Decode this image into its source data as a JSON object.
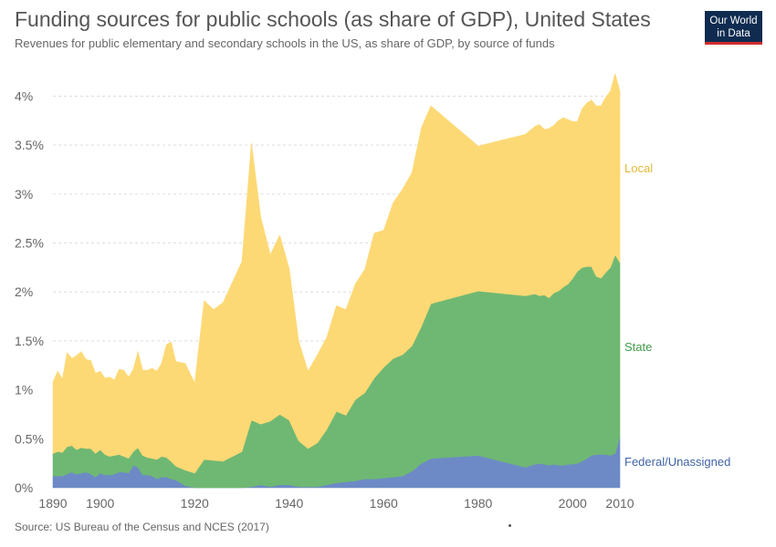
{
  "header": {
    "title": "Funding sources for public schools (as share of GDP), United States",
    "subtitle": "Revenues for public elementary and secondary schools in the US, as share of GDP, by source of funds"
  },
  "logo": {
    "line1": "Our World",
    "line2": "in Data"
  },
  "footer": {
    "source": "Source: US Bureau of the Census and NCES (2017)"
  },
  "chart_data": {
    "type": "area",
    "stacked": true,
    "title": "Funding sources for public schools (as share of GDP), United States",
    "xlabel": "",
    "ylabel": "",
    "xlim": [
      1890,
      2010
    ],
    "ylim": [
      0,
      4.2
    ],
    "y_unit": "%",
    "grid": "horizontal dashed",
    "legend": "inline labels at right end of each series",
    "x_ticks": [
      1890,
      1900,
      1920,
      1940,
      1960,
      1980,
      2000,
      2010
    ],
    "y_ticks": [
      {
        "value": 0,
        "label": "0%"
      },
      {
        "value": 0.5,
        "label": "0.5%"
      },
      {
        "value": 1,
        "label": "1%"
      },
      {
        "value": 1.5,
        "label": "1.5%"
      },
      {
        "value": 2,
        "label": "2%"
      },
      {
        "value": 2.5,
        "label": "2.5%"
      },
      {
        "value": 3,
        "label": "3%"
      },
      {
        "value": 3.5,
        "label": "3.5%"
      },
      {
        "value": 4,
        "label": "4%"
      }
    ],
    "x": [
      1890,
      1891,
      1892,
      1893,
      1894,
      1895,
      1896,
      1897,
      1898,
      1899,
      1900,
      1901,
      1902,
      1903,
      1904,
      1905,
      1906,
      1907,
      1908,
      1909,
      1910,
      1911,
      1912,
      1913,
      1914,
      1915,
      1916,
      1918,
      1920,
      1922,
      1924,
      1926,
      1930,
      1932,
      1934,
      1936,
      1938,
      1940,
      1942,
      1944,
      1946,
      1948,
      1950,
      1952,
      1954,
      1956,
      1958,
      1960,
      1962,
      1964,
      1966,
      1968,
      1970,
      1980,
      1990,
      1992,
      1993,
      1994,
      1995,
      1996,
      1997,
      1998,
      1999,
      2000,
      2001,
      2002,
      2003,
      2004,
      2005,
      2006,
      2007,
      2008,
      2009,
      2010
    ],
    "series": [
      {
        "name": "Federal/Unassigned",
        "color": "#6d8ac6",
        "values": [
          0.12,
          0.12,
          0.12,
          0.14,
          0.16,
          0.14,
          0.15,
          0.16,
          0.14,
          0.11,
          0.15,
          0.13,
          0.13,
          0.14,
          0.16,
          0.16,
          0.15,
          0.23,
          0.21,
          0.13,
          0.13,
          0.12,
          0.09,
          0.11,
          0.11,
          0.09,
          0.08,
          0.02,
          0.0,
          0.0,
          0.0,
          0.0,
          0.0,
          0.01,
          0.03,
          0.01,
          0.03,
          0.03,
          0.01,
          0.01,
          0.01,
          0.03,
          0.05,
          0.06,
          0.07,
          0.09,
          0.09,
          0.1,
          0.11,
          0.12,
          0.17,
          0.25,
          0.3,
          0.33,
          0.21,
          0.24,
          0.25,
          0.24,
          0.23,
          0.24,
          0.23,
          0.23,
          0.24,
          0.24,
          0.25,
          0.27,
          0.3,
          0.33,
          0.34,
          0.34,
          0.34,
          0.33,
          0.35,
          0.52
        ]
      },
      {
        "name": "State",
        "color": "#6fb873",
        "values": [
          0.23,
          0.25,
          0.24,
          0.28,
          0.27,
          0.25,
          0.26,
          0.24,
          0.26,
          0.24,
          0.24,
          0.21,
          0.19,
          0.19,
          0.18,
          0.16,
          0.15,
          0.14,
          0.2,
          0.2,
          0.18,
          0.18,
          0.2,
          0.21,
          0.2,
          0.18,
          0.14,
          0.16,
          0.15,
          0.29,
          0.28,
          0.27,
          0.37,
          0.68,
          0.62,
          0.67,
          0.72,
          0.66,
          0.47,
          0.39,
          0.45,
          0.57,
          0.73,
          0.68,
          0.83,
          0.88,
          1.03,
          1.13,
          1.21,
          1.24,
          1.28,
          1.4,
          1.58,
          1.68,
          1.75,
          1.74,
          1.71,
          1.73,
          1.71,
          1.75,
          1.78,
          1.82,
          1.84,
          1.9,
          1.96,
          1.98,
          1.96,
          1.93,
          1.82,
          1.8,
          1.86,
          1.92,
          2.03,
          1.78
        ]
      },
      {
        "name": "Local",
        "color": "#fdd975",
        "values": [
          0.73,
          0.82,
          0.75,
          0.96,
          0.89,
          0.96,
          0.98,
          0.91,
          0.9,
          0.82,
          0.8,
          0.78,
          0.81,
          0.77,
          0.87,
          0.88,
          0.83,
          0.84,
          0.98,
          0.87,
          0.89,
          0.92,
          0.9,
          0.95,
          1.15,
          1.22,
          1.07,
          1.09,
          0.92,
          1.62,
          1.54,
          1.62,
          1.94,
          2.83,
          2.11,
          1.7,
          1.83,
          1.55,
          1.02,
          0.79,
          0.9,
          0.94,
          1.08,
          1.08,
          1.18,
          1.26,
          1.48,
          1.4,
          1.59,
          1.69,
          1.77,
          2.03,
          2.02,
          1.48,
          1.65,
          1.71,
          1.75,
          1.69,
          1.73,
          1.71,
          1.74,
          1.73,
          1.68,
          1.6,
          1.53,
          1.62,
          1.67,
          1.7,
          1.74,
          1.76,
          1.79,
          1.8,
          1.85,
          1.75
        ]
      }
    ]
  }
}
